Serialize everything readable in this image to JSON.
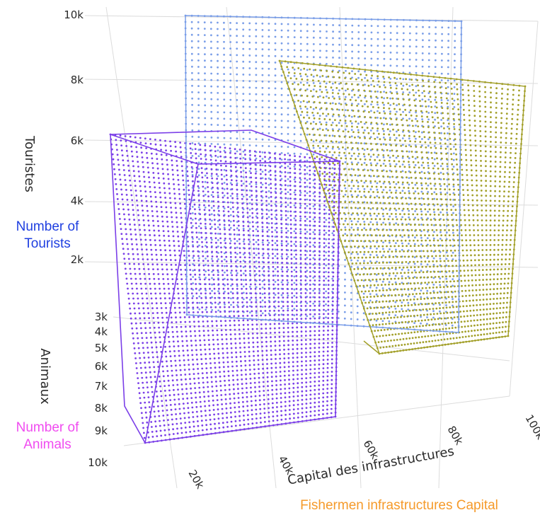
{
  "chart_data": {
    "type": "scatter",
    "subtype": "3d-volume-point-clouds",
    "axes": {
      "x": {
        "title": "Capital des infrastructures",
        "annotation": "Fishermen infrastructures Capital",
        "ticks": [
          "20k",
          "40k",
          "60k",
          "80k",
          "100k"
        ],
        "range": [
          0,
          100000
        ]
      },
      "y": {
        "title": "Animaux",
        "annotation": "Number of Animals",
        "ticks": [
          "3k",
          "4k",
          "5k",
          "6k",
          "7k",
          "8k",
          "9k",
          "10k"
        ],
        "range": [
          2500,
          10000
        ],
        "reversed": true
      },
      "z": {
        "title": "Touristes",
        "annotation": "Number of Tourists",
        "ticks": [
          "2k",
          "4k",
          "6k",
          "8k",
          "10k"
        ],
        "range": [
          0,
          10000
        ]
      }
    },
    "series": [
      {
        "color": "#7a9ee8",
        "x_range": [
          55000,
          100000
        ],
        "y_range": [
          2500,
          10000
        ],
        "z_range": [
          2000,
          10000
        ]
      },
      {
        "color": "#a3a02a",
        "x_range": [
          60000,
          100000
        ],
        "y_range": [
          2500,
          10000
        ],
        "z_range": [
          0,
          8000
        ]
      },
      {
        "color": "#7b3fe8",
        "x_range": [
          10000,
          60000
        ],
        "y_range": [
          3000,
          10000
        ],
        "z_range": [
          0,
          6000
        ]
      }
    ],
    "grid": true,
    "legend": "none"
  },
  "colors": {
    "annotation_z": "#1f3fe0",
    "annotation_y": "#f04cf0",
    "annotation_x": "#f59a2a"
  }
}
